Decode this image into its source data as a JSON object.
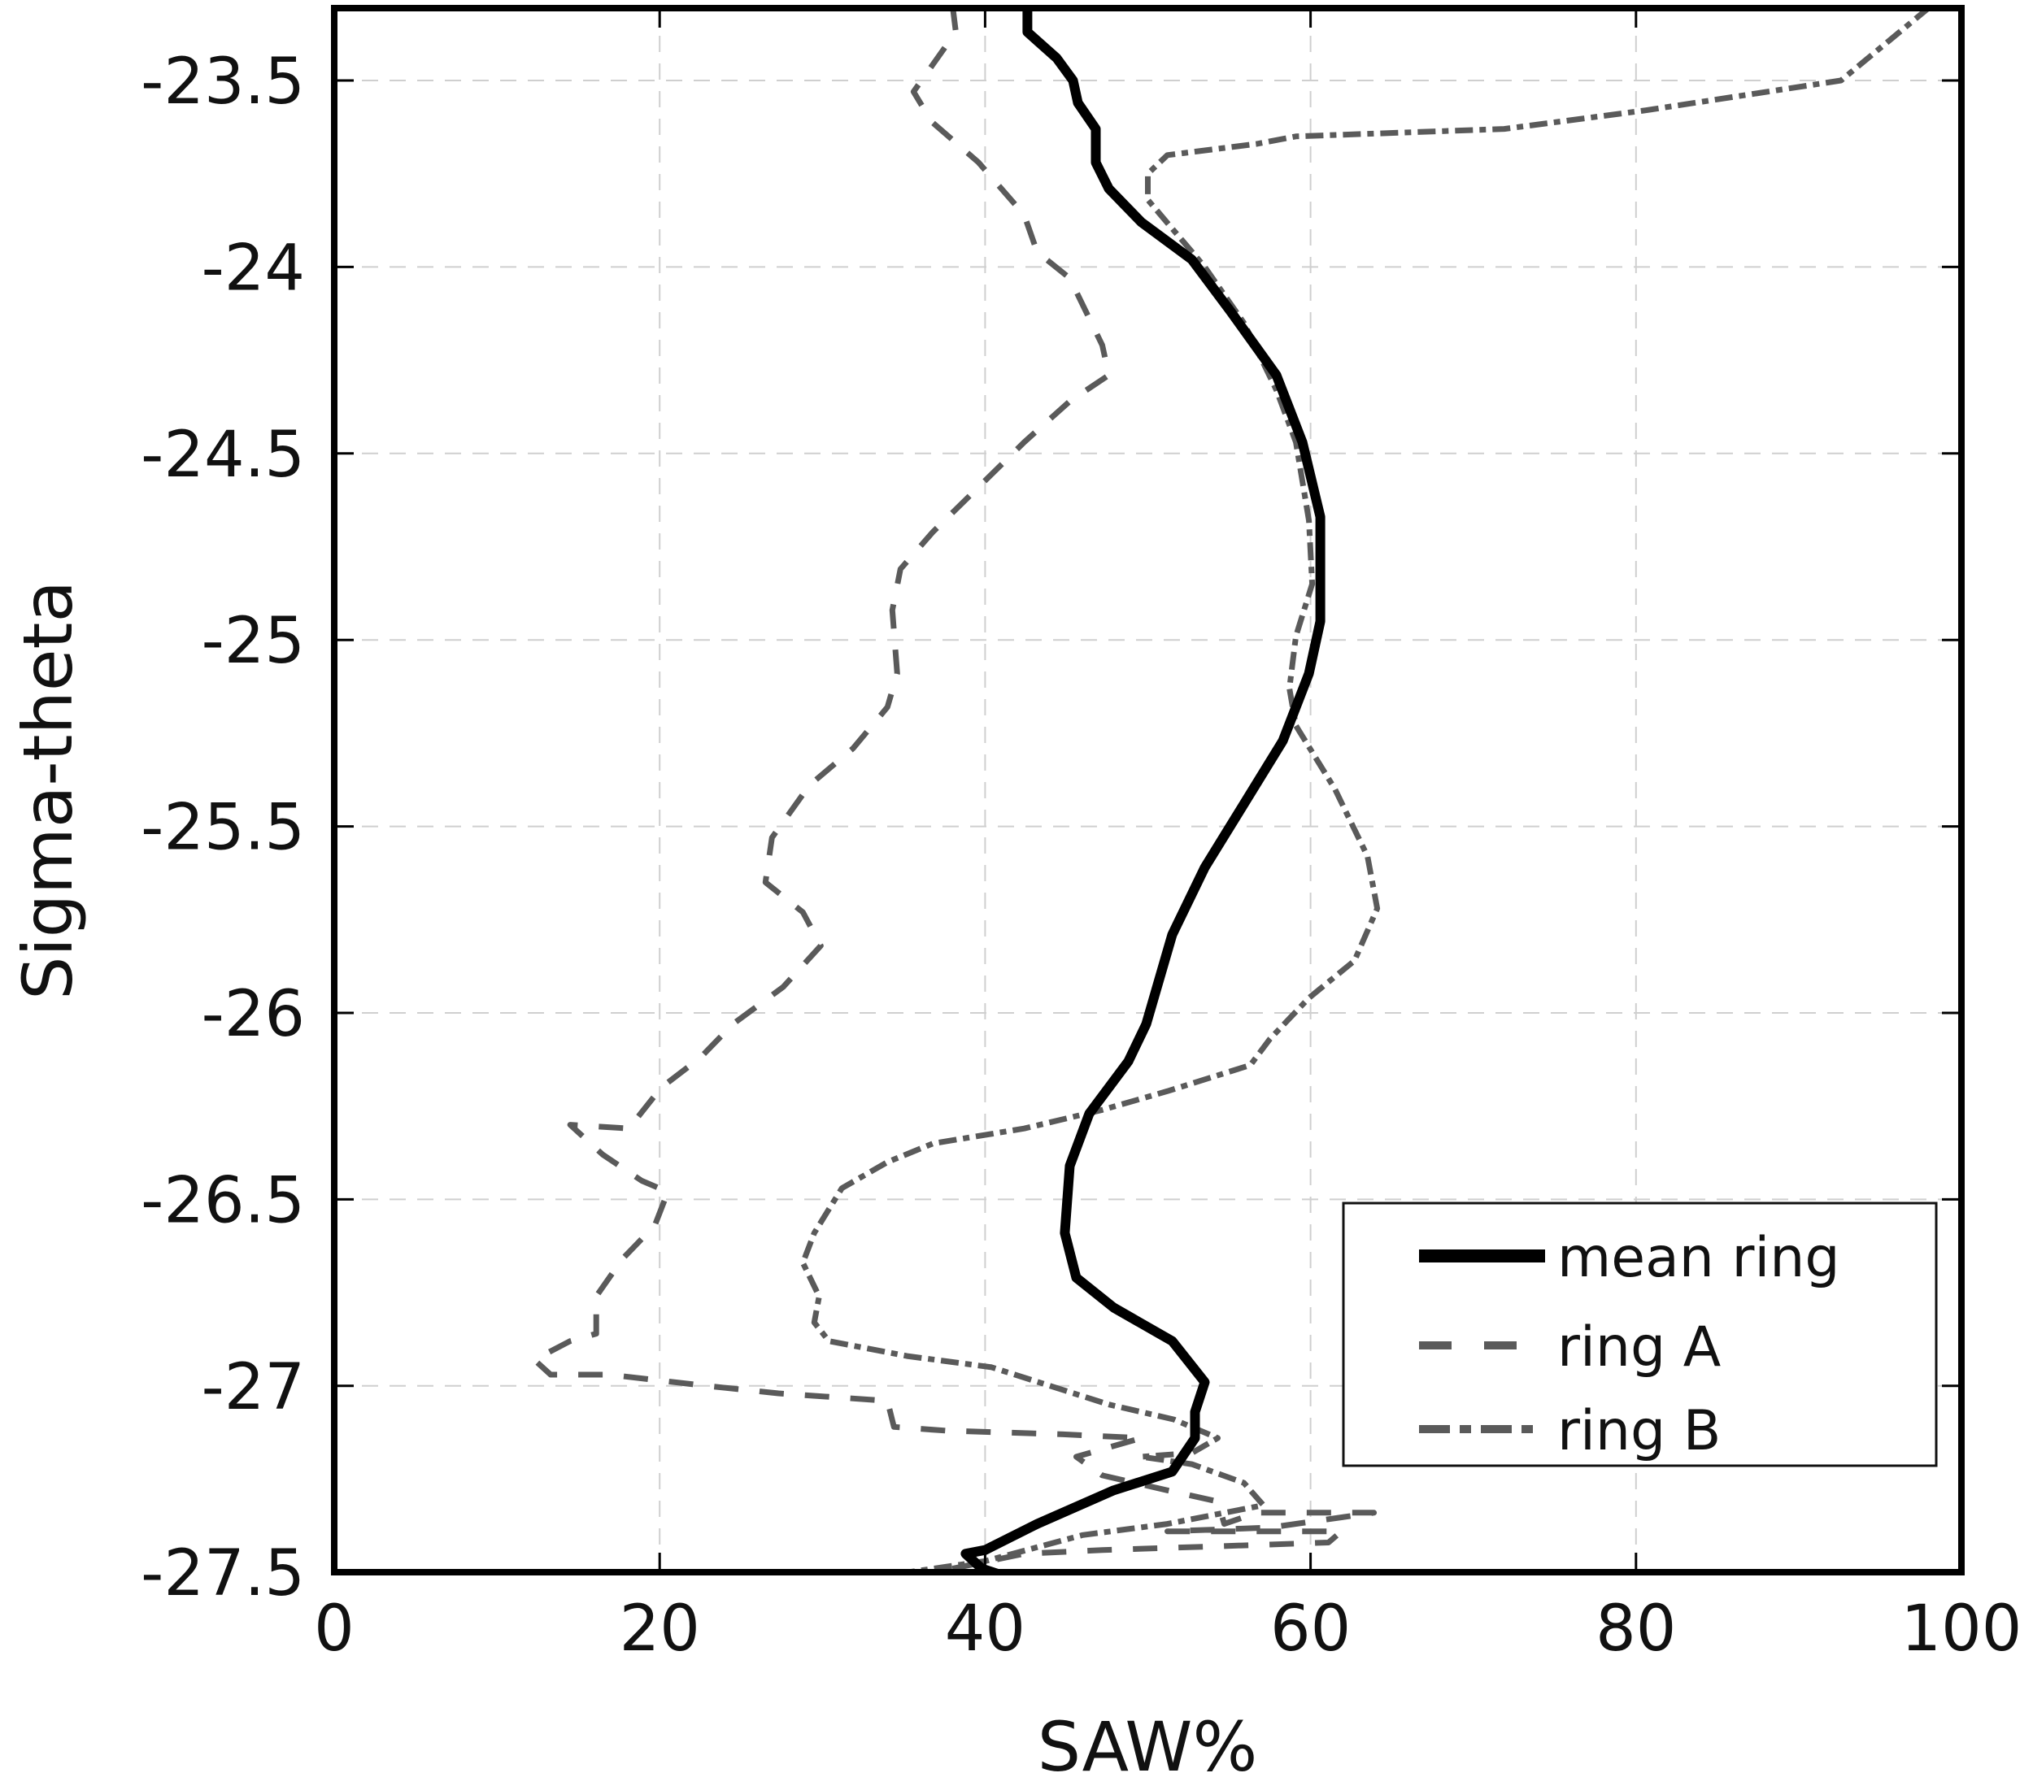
{
  "chart_data": {
    "type": "line",
    "title": "",
    "xlabel": "SAW%",
    "ylabel": "Sigma-theta",
    "xlim": [
      0,
      100
    ],
    "ylim": [
      -27.5,
      -23.3
    ],
    "xticks": [
      0,
      20,
      40,
      60,
      80,
      100
    ],
    "xtick_labels": [
      "0",
      "20",
      "40",
      "60",
      "80",
      "100"
    ],
    "yticks": [
      -23.5,
      -24,
      -24.5,
      -25,
      -25.5,
      -26,
      -26.5,
      -27,
      -27.5
    ],
    "ytick_labels": [
      "-23.5",
      "-24",
      "-24.5",
      "-25",
      "-25.5",
      "-26",
      "-26.5",
      "-27",
      "-27.5"
    ],
    "grid": true,
    "legend_position": "lower right",
    "series": [
      {
        "name": "mean ring",
        "style": "solid",
        "color": "#000000",
        "x": [
          42.6,
          42.6,
          44.4,
          45.4,
          45.7,
          46.8,
          46.8,
          47.6,
          49.6,
          52.7,
          55.1,
          57.9,
          59.5,
          60.6,
          60.6,
          59.9,
          58.3,
          55.9,
          53.5,
          51.5,
          49.9,
          48.8,
          46.4,
          45.2,
          44.9,
          45.6,
          47.9,
          51.5,
          53.5,
          52.9,
          52.9,
          51.5,
          47.9,
          43.2,
          40.0,
          38.8,
          39.8,
          41.2
        ],
        "y": [
          -23.3,
          -23.37,
          -23.44,
          -23.5,
          -23.56,
          -23.63,
          -23.72,
          -23.79,
          -23.88,
          -23.98,
          -24.12,
          -24.29,
          -24.47,
          -24.67,
          -24.95,
          -25.09,
          -25.27,
          -25.44,
          -25.61,
          -25.79,
          -26.03,
          -26.13,
          -26.27,
          -26.41,
          -26.59,
          -26.71,
          -26.79,
          -26.88,
          -26.99,
          -27.07,
          -27.14,
          -27.23,
          -27.28,
          -27.37,
          -27.44,
          -27.45,
          -27.49,
          -27.51
        ]
      },
      {
        "name": "ring A",
        "style": "dashed",
        "color": "#5a5a5a",
        "x": [
          38.0,
          38.2,
          35.6,
          36.7,
          39.6,
          42.4,
          43.2,
          45.2,
          47.2,
          47.6,
          45.2,
          42.4,
          39.6,
          36.8,
          34.8,
          34.3,
          34.6,
          34.0,
          31.9,
          29.2,
          26.9,
          26.5,
          28.8,
          29.9,
          27.6,
          24.5,
          22.5,
          20.1,
          18.1,
          14.5,
          16.5,
          18.9,
          20.5,
          19.7,
          17.7,
          16.1,
          16.1,
          14.5,
          12.3,
          13.3,
          16.9,
          22.9,
          27.3,
          34.0,
          34.4,
          37.6,
          44.8,
          49.6,
          45.6,
          47.2,
          51.2,
          54.3,
          54.7,
          56.7,
          63.9,
          57.5,
          51.2,
          61.9,
          61.1,
          54.3,
          47.2,
          42.4,
          38.0,
          35.2
        ],
        "y": [
          -23.3,
          -23.37,
          -23.53,
          -23.61,
          -23.72,
          -23.86,
          -23.96,
          -24.03,
          -24.21,
          -24.29,
          -24.36,
          -24.47,
          -24.59,
          -24.71,
          -24.81,
          -24.92,
          -25.09,
          -25.18,
          -25.29,
          -25.39,
          -25.53,
          -25.65,
          -25.73,
          -25.82,
          -25.93,
          -26.03,
          -26.12,
          -26.2,
          -26.31,
          -26.3,
          -26.38,
          -26.45,
          -26.48,
          -26.57,
          -26.66,
          -26.76,
          -26.86,
          -26.88,
          -26.93,
          -26.97,
          -26.97,
          -27.0,
          -27.02,
          -27.04,
          -27.11,
          -27.12,
          -27.13,
          -27.14,
          -27.19,
          -27.24,
          -27.28,
          -27.31,
          -27.37,
          -27.34,
          -27.34,
          -27.38,
          -27.39,
          -27.39,
          -27.42,
          -27.43,
          -27.44,
          -27.45,
          -27.49,
          -27.51
        ]
      },
      {
        "name": "ring B",
        "style": "dash-dot",
        "color": "#5a5a5a",
        "x": [
          99.8,
          92.6,
          80.6,
          71.9,
          59.1,
          56.7,
          51.2,
          50.0,
          50.0,
          53.5,
          55.9,
          57.9,
          59.1,
          59.9,
          60.1,
          59.1,
          58.7,
          59.1,
          61.5,
          63.5,
          64.1,
          62.7,
          59.9,
          57.5,
          56.3,
          51.2,
          47.2,
          42.4,
          36.8,
          34.0,
          31.2,
          29.5,
          28.8,
          29.8,
          29.5,
          30.4,
          35.2,
          40.4,
          44.0,
          47.6,
          51.6,
          54.3,
          52.7,
          49.6,
          52.7,
          55.9,
          57.1,
          51.2,
          46.0,
          40.0,
          35.2,
          32.8
        ],
        "y": [
          -23.24,
          -23.5,
          -23.58,
          -23.63,
          -23.65,
          -23.67,
          -23.7,
          -23.75,
          -23.82,
          -24.0,
          -24.15,
          -24.33,
          -24.47,
          -24.68,
          -24.85,
          -24.99,
          -25.13,
          -25.23,
          -25.4,
          -25.58,
          -25.72,
          -25.86,
          -25.96,
          -26.07,
          -26.14,
          -26.21,
          -26.26,
          -26.31,
          -26.35,
          -26.4,
          -26.47,
          -26.59,
          -26.67,
          -26.76,
          -26.83,
          -26.88,
          -26.92,
          -26.95,
          -27.0,
          -27.05,
          -27.09,
          -27.14,
          -27.18,
          -27.19,
          -27.21,
          -27.26,
          -27.32,
          -27.37,
          -27.4,
          -27.47,
          -27.5,
          -27.51
        ]
      }
    ]
  },
  "legend": {
    "items": [
      {
        "label": "mean ring"
      },
      {
        "label": "ring A"
      },
      {
        "label": "ring B"
      }
    ]
  }
}
